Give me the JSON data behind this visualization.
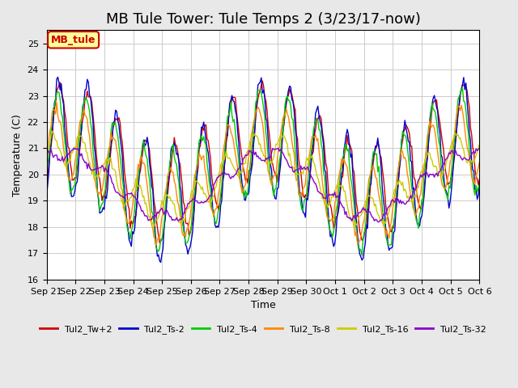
{
  "title": "MB Tule Tower: Tule Temps 2 (3/23/17-now)",
  "xlabel": "Time",
  "ylabel": "Temperature (C)",
  "ylim": [
    16.0,
    25.5
  ],
  "yticks": [
    16.0,
    17.0,
    18.0,
    19.0,
    20.0,
    21.0,
    22.0,
    23.0,
    24.0,
    25.0
  ],
  "legend_label": "MB_tule",
  "legend_box_color": "#ffff99",
  "legend_box_border": "#cc0000",
  "series_colors": {
    "Tul2_Tw+2": "#cc0000",
    "Tul2_Ts-2": "#0000cc",
    "Tul2_Ts-4": "#00cc00",
    "Tul2_Ts-8": "#ff8800",
    "Tul2_Ts-16": "#cccc00",
    "Tul2_Ts-32": "#8800cc"
  },
  "bg_color": "#e8e8e8",
  "plot_bg_color": "#ffffff",
  "grid_color": "#cccccc",
  "tick_labels": [
    "Sep 21",
    "Sep 22",
    "Sep 23",
    "Sep 24",
    "Sep 25",
    "Sep 26",
    "Sep 27",
    "Sep 28",
    "Sep 29",
    "Sep 30",
    "Oct 1",
    "Oct 2",
    "Oct 3",
    "Oct 4",
    "Oct 5",
    "Oct 6"
  ],
  "num_days": 15,
  "title_fontsize": 13,
  "axis_fontsize": 9,
  "tick_fontsize": 8
}
